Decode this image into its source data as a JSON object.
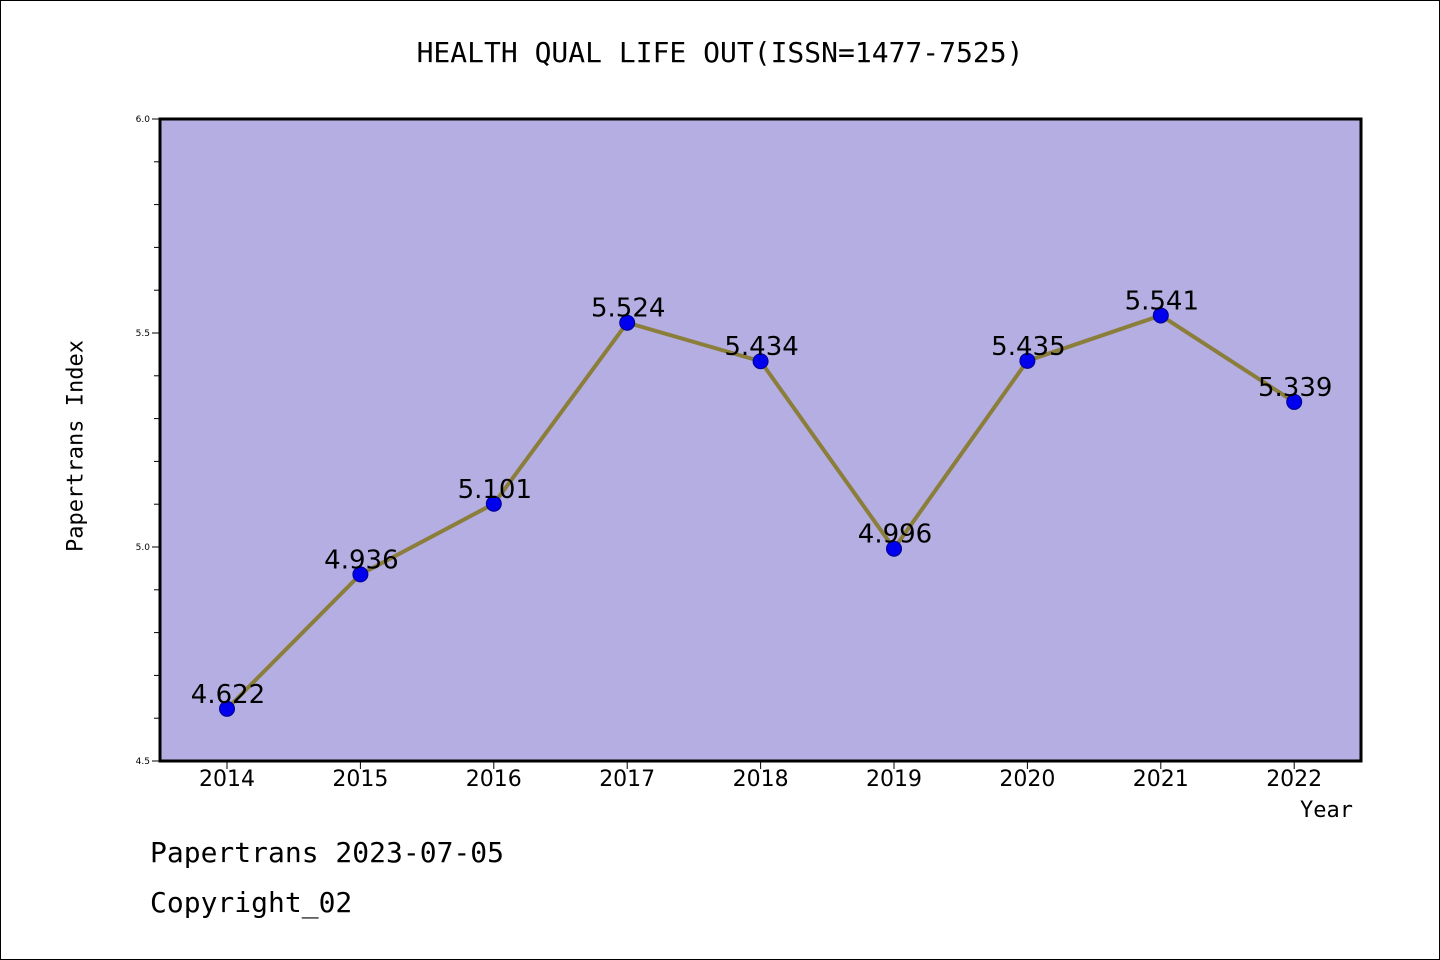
{
  "chart_data": {
    "type": "line",
    "title": "HEALTH QUAL LIFE OUT(ISSN=1477-7525)",
    "xlabel": "Year",
    "ylabel": "Papertrans Index",
    "categories": [
      "2014",
      "2015",
      "2016",
      "2017",
      "2018",
      "2019",
      "2020",
      "2021",
      "2022"
    ],
    "series": [
      {
        "values": [
          4.622,
          4.936,
          5.101,
          5.524,
          5.434,
          4.996,
          5.435,
          5.541,
          5.339
        ]
      }
    ],
    "data_labels": [
      "4.622",
      "4.936",
      "5.101",
      "5.524",
      "5.434",
      "4.996",
      "5.435",
      "5.541",
      "5.339"
    ],
    "ylim": [
      4.5,
      6.0
    ],
    "yticks": [
      "4.5",
      "5.0",
      "5.5",
      "6.0"
    ],
    "y_minor_step": 0.1,
    "grid": false,
    "colors": {
      "plot_background": "#b4aee2",
      "line": "#8b7d3a",
      "marker": "#0000ee",
      "marker_edge": "#00008b"
    }
  },
  "footer": {
    "line1": "Papertrans 2023-07-05",
    "line2": "Copyright_02"
  }
}
